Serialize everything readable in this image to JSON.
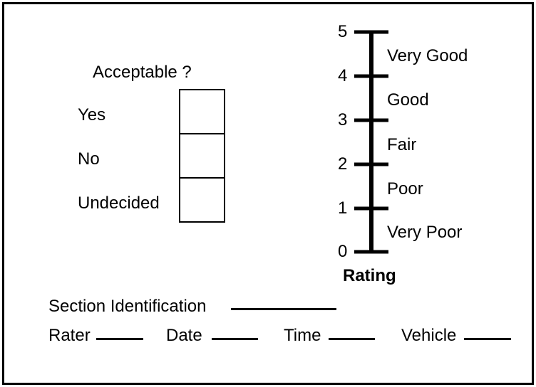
{
  "acceptable": {
    "title": "Acceptable ?",
    "options": [
      "Yes",
      "No",
      "Undecided"
    ]
  },
  "rating": {
    "label": "Rating",
    "ticks": [
      "0",
      "1",
      "2",
      "3",
      "4",
      "5"
    ],
    "descriptors": [
      "Very Poor",
      "Poor",
      "Fair",
      "Good",
      "Very Good"
    ]
  },
  "fields": {
    "section_identification": "Section Identification",
    "rater": "Rater",
    "date": "Date",
    "time": "Time",
    "vehicle": "Vehicle"
  }
}
